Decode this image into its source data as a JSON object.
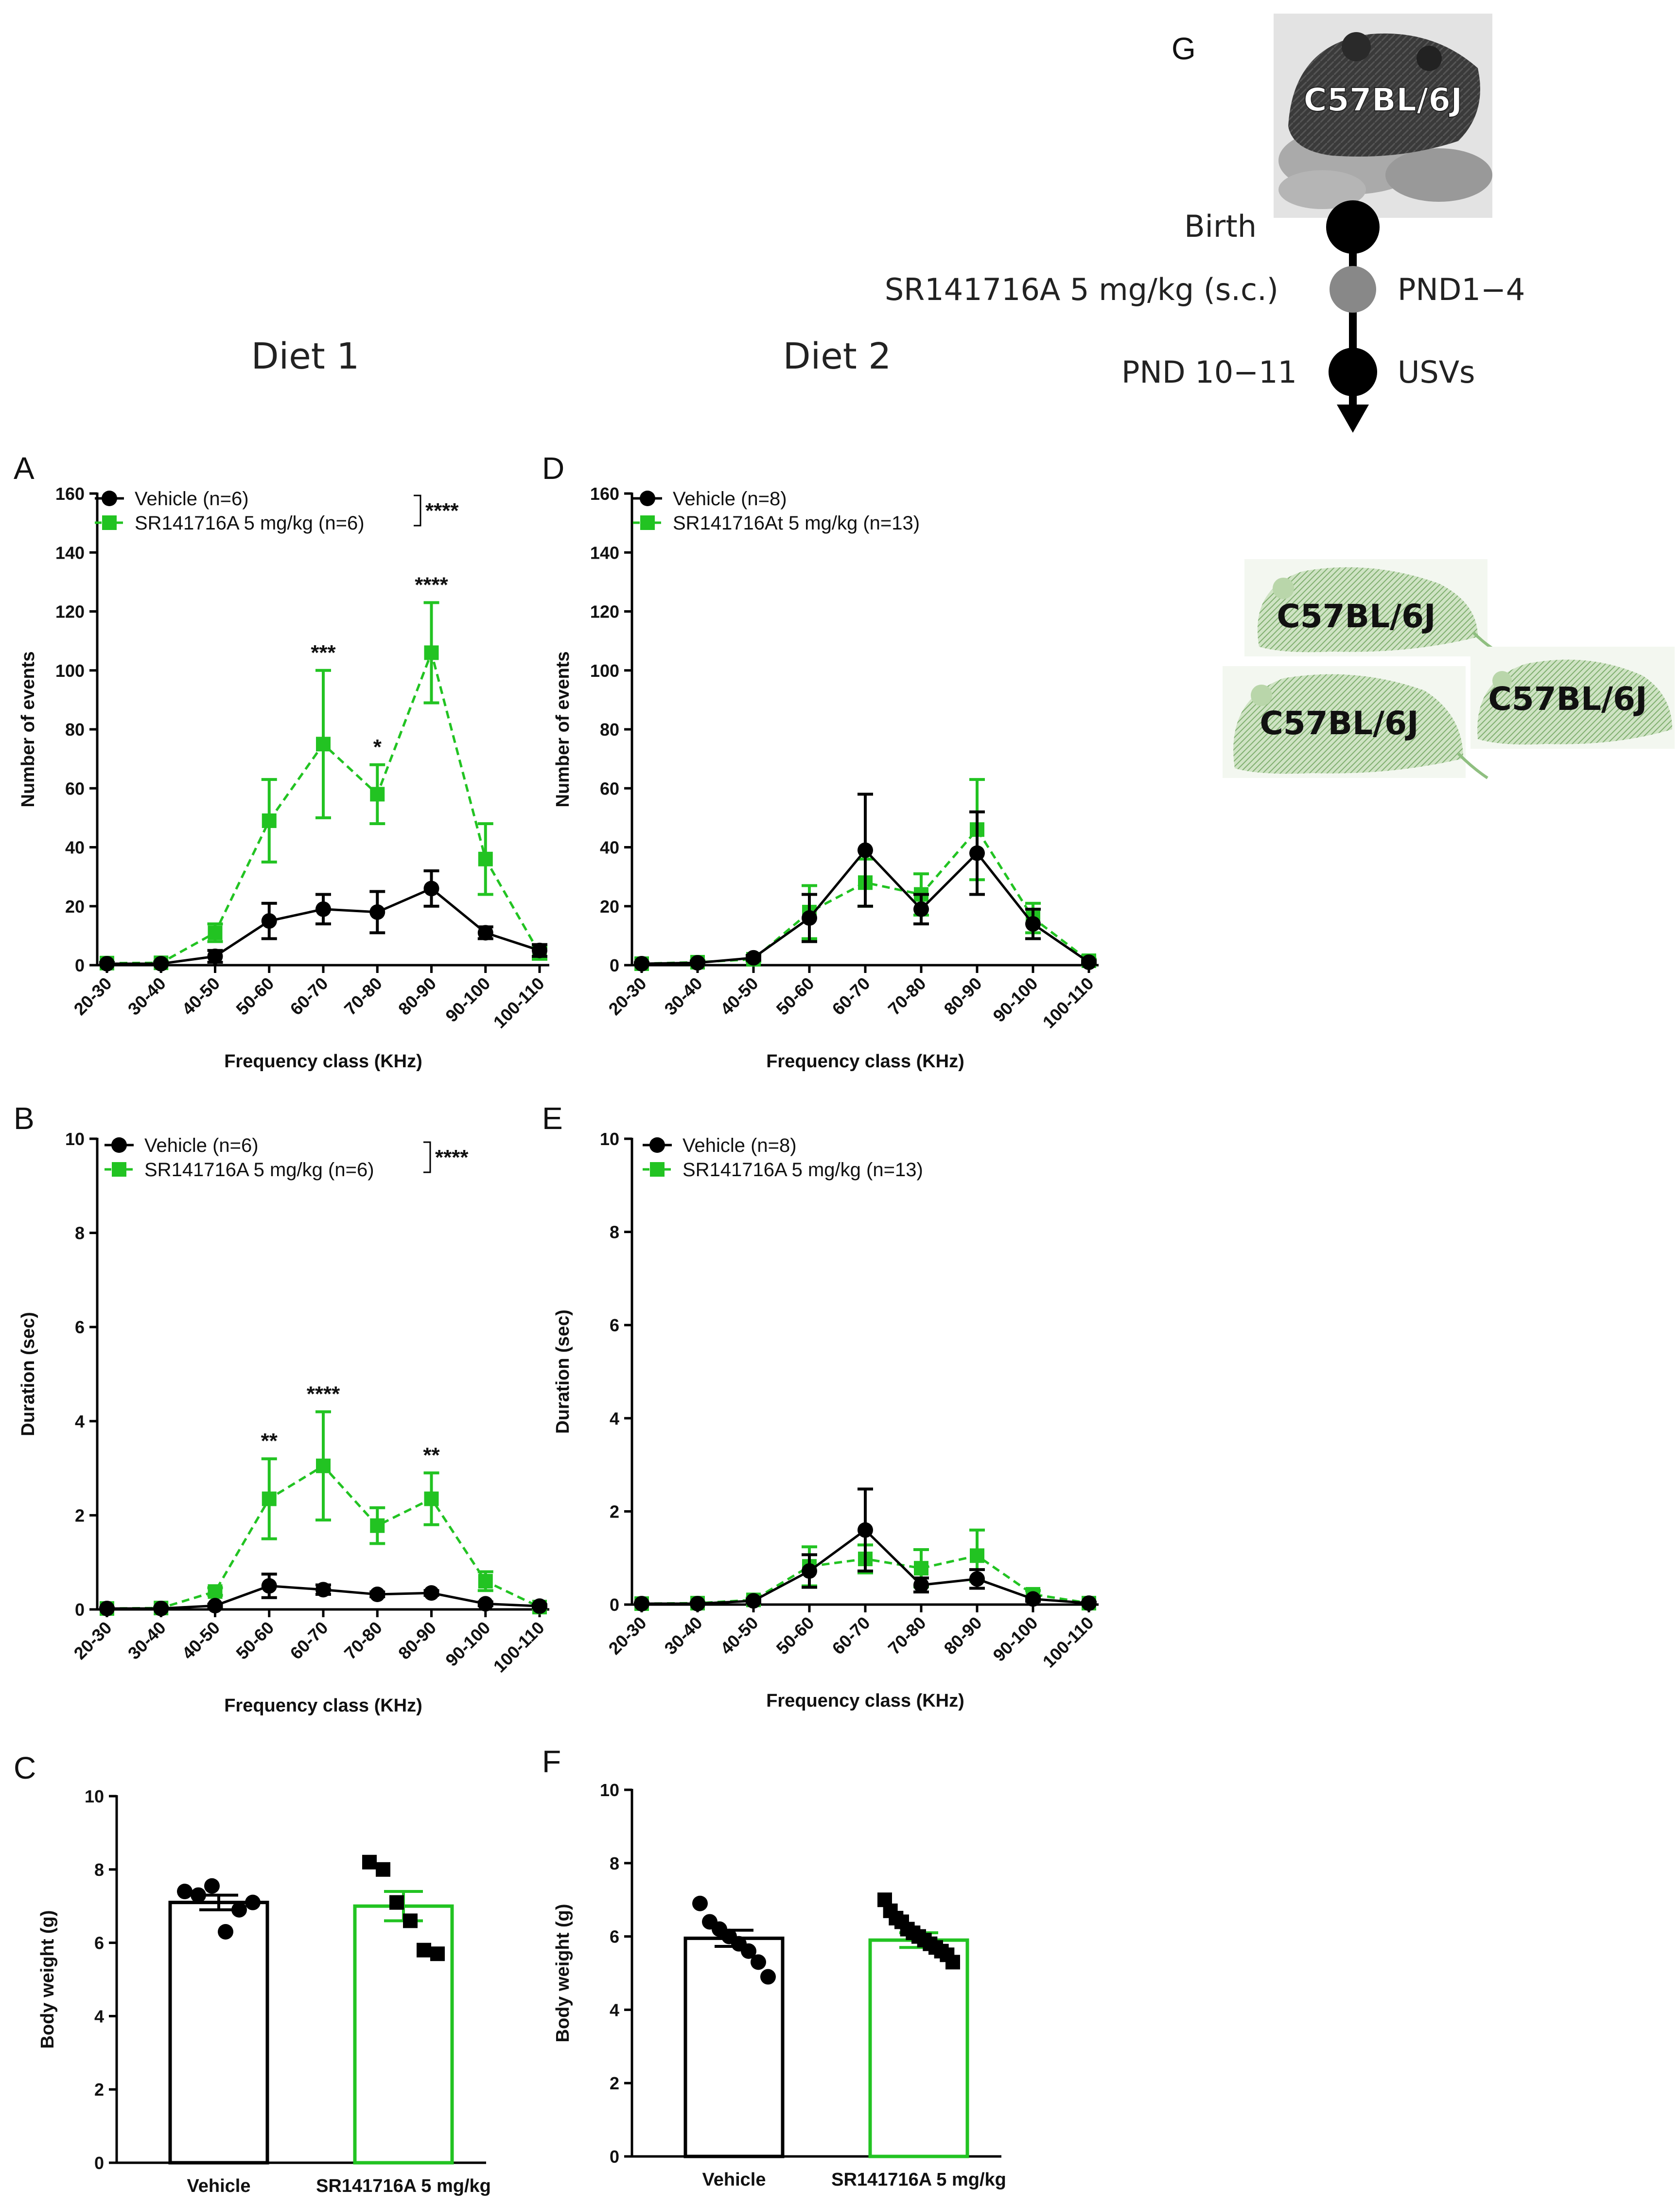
{
  "headers": {
    "diet1": "Diet 1",
    "diet2": "Diet 2"
  },
  "colors": {
    "vehicle": "#000000",
    "drug": "#22c322"
  },
  "timeline": {
    "panel_label": "G",
    "strain": "C57BL/6J",
    "steps": [
      {
        "left": "Birth",
        "right": "",
        "color": "#000000"
      },
      {
        "left": "SR141716A 5 mg/kg (s.c.)",
        "right": "PND1−4",
        "color": "#888888"
      },
      {
        "left": "PND 10−11",
        "right": "USVs",
        "color": "#000000"
      }
    ],
    "offspring": [
      "C57BL/6J",
      "C57BL/6J",
      "C57BL/6J"
    ]
  },
  "chart_data": [
    {
      "panel": "A",
      "type": "line",
      "categories": [
        "20-30",
        "30-40",
        "40-50",
        "50-60",
        "60-70",
        "70-80",
        "80-90",
        "90-100",
        "100-110"
      ],
      "xlabel": "Frequency class (KHz)",
      "ylabel": "Number of events",
      "ylim": [
        0,
        160
      ],
      "yticks": [
        0,
        20,
        40,
        60,
        80,
        100,
        120,
        140,
        160
      ],
      "legend_sig": "****",
      "series": [
        {
          "name": "Vehicle (n=6)",
          "values": [
            0.5,
            0.5,
            3,
            15,
            19,
            18,
            26,
            11,
            5
          ],
          "err": [
            0.3,
            0.3,
            2,
            6,
            5,
            7,
            6,
            2,
            2
          ]
        },
        {
          "name": "SR141716A 5 mg/kg (n=6)",
          "values": [
            0.7,
            0.8,
            11,
            49,
            75,
            58,
            106,
            36,
            4
          ],
          "err": [
            0.3,
            0.4,
            3,
            14,
            25,
            10,
            17,
            12,
            2
          ]
        }
      ],
      "annotations": [
        {
          "index": 4,
          "text": "***"
        },
        {
          "index": 5,
          "text": "*"
        },
        {
          "index": 6,
          "text": "****"
        }
      ]
    },
    {
      "panel": "B",
      "type": "line",
      "categories": [
        "20-30",
        "30-40",
        "40-50",
        "50-60",
        "60-70",
        "70-80",
        "80-90",
        "90-100",
        "100-110"
      ],
      "xlabel": "Frequency class (KHz)",
      "ylabel": "Duration (sec)",
      "ylim": [
        0,
        10
      ],
      "yticks": [
        0,
        2,
        4,
        6,
        8,
        10
      ],
      "legend_sig": "****",
      "series": [
        {
          "name": "Vehicle (n=6)",
          "values": [
            0.02,
            0.02,
            0.08,
            0.5,
            0.42,
            0.32,
            0.35,
            0.12,
            0.07
          ],
          "err": [
            0.01,
            0.01,
            0.03,
            0.25,
            0.1,
            0.05,
            0.05,
            0.04,
            0.03
          ]
        },
        {
          "name": "SR141716A 5 mg/kg (n=6)",
          "values": [
            0.02,
            0.03,
            0.38,
            2.35,
            3.05,
            1.78,
            2.35,
            0.6,
            0.05
          ],
          "err": [
            0.01,
            0.02,
            0.08,
            0.85,
            1.15,
            0.38,
            0.55,
            0.2,
            0.03
          ]
        }
      ],
      "annotations": [
        {
          "index": 3,
          "text": "**"
        },
        {
          "index": 4,
          "text": "****"
        },
        {
          "index": 6,
          "text": "**"
        }
      ]
    },
    {
      "panel": "C",
      "type": "bar",
      "categories": [
        "Vehicle",
        "SR141716A 5 mg/kg"
      ],
      "ylabel": "Body weight (g)",
      "ylim": [
        0,
        10
      ],
      "yticks": [
        0,
        2,
        4,
        6,
        8,
        10
      ],
      "values": [
        7.1,
        7.0
      ],
      "err": [
        0.2,
        0.4
      ],
      "points": [
        [
          7.4,
          7.3,
          7.55,
          6.3,
          6.9,
          7.1
        ],
        [
          8.2,
          8.0,
          7.1,
          6.6,
          5.8,
          5.7
        ]
      ]
    },
    {
      "panel": "D",
      "type": "line",
      "categories": [
        "20-30",
        "30-40",
        "40-50",
        "50-60",
        "60-70",
        "70-80",
        "80-90",
        "90-100",
        "100-110"
      ],
      "xlabel": "Frequency class (KHz)",
      "ylabel": "Number of events",
      "ylim": [
        0,
        160
      ],
      "yticks": [
        0,
        20,
        40,
        60,
        80,
        100,
        120,
        140,
        160
      ],
      "legend_sig": "",
      "series": [
        {
          "name": "Vehicle (n=8)",
          "values": [
            0.5,
            0.8,
            2.5,
            16,
            39,
            19,
            38,
            14,
            1
          ],
          "err": [
            0.3,
            0.4,
            0.8,
            8,
            19,
            5,
            14,
            5,
            0.5
          ]
        },
        {
          "name": "SR141716At 5 mg/kg (n=13)",
          "values": [
            0.5,
            1,
            2,
            18,
            28,
            24,
            46,
            16,
            1.5
          ],
          "err": [
            0.3,
            0.5,
            0.8,
            9,
            8,
            7,
            17,
            5,
            0.5
          ]
        }
      ],
      "annotations": []
    },
    {
      "panel": "E",
      "type": "line",
      "categories": [
        "20-30",
        "30-40",
        "40-50",
        "50-60",
        "60-70",
        "70-80",
        "80-90",
        "90-100",
        "100-110"
      ],
      "xlabel": "Frequency class (KHz)",
      "ylabel": "Duration (sec)",
      "ylim": [
        0,
        10
      ],
      "yticks": [
        0,
        2,
        4,
        6,
        8,
        10
      ],
      "legend_sig": "",
      "series": [
        {
          "name": "Vehicle (n=8)",
          "values": [
            0.02,
            0.02,
            0.08,
            0.72,
            1.6,
            0.42,
            0.55,
            0.12,
            0.03
          ],
          "err": [
            0.01,
            0.01,
            0.03,
            0.35,
            0.88,
            0.15,
            0.2,
            0.05,
            0.02
          ]
        },
        {
          "name": "SR141716A 5 mg/kg (n=13)",
          "values": [
            0.02,
            0.03,
            0.1,
            0.82,
            0.98,
            0.78,
            1.05,
            0.22,
            0.03
          ],
          "err": [
            0.01,
            0.02,
            0.04,
            0.42,
            0.3,
            0.4,
            0.55,
            0.08,
            0.02
          ]
        }
      ],
      "annotations": []
    },
    {
      "panel": "F",
      "type": "bar",
      "categories": [
        "Vehicle",
        "SR141716A 5 mg/kg"
      ],
      "ylabel": "Body weight (g)",
      "ylim": [
        0,
        10
      ],
      "yticks": [
        0,
        2,
        4,
        6,
        8,
        10
      ],
      "values": [
        5.95,
        5.9
      ],
      "err": [
        0.22,
        0.2
      ],
      "points": [
        [
          6.9,
          6.4,
          6.2,
          6.0,
          5.8,
          5.6,
          5.3,
          4.9
        ],
        [
          7.0,
          6.7,
          6.5,
          6.4,
          6.2,
          6.1,
          6.0,
          5.9,
          5.8,
          5.7,
          5.6,
          5.5,
          5.3
        ]
      ]
    }
  ]
}
